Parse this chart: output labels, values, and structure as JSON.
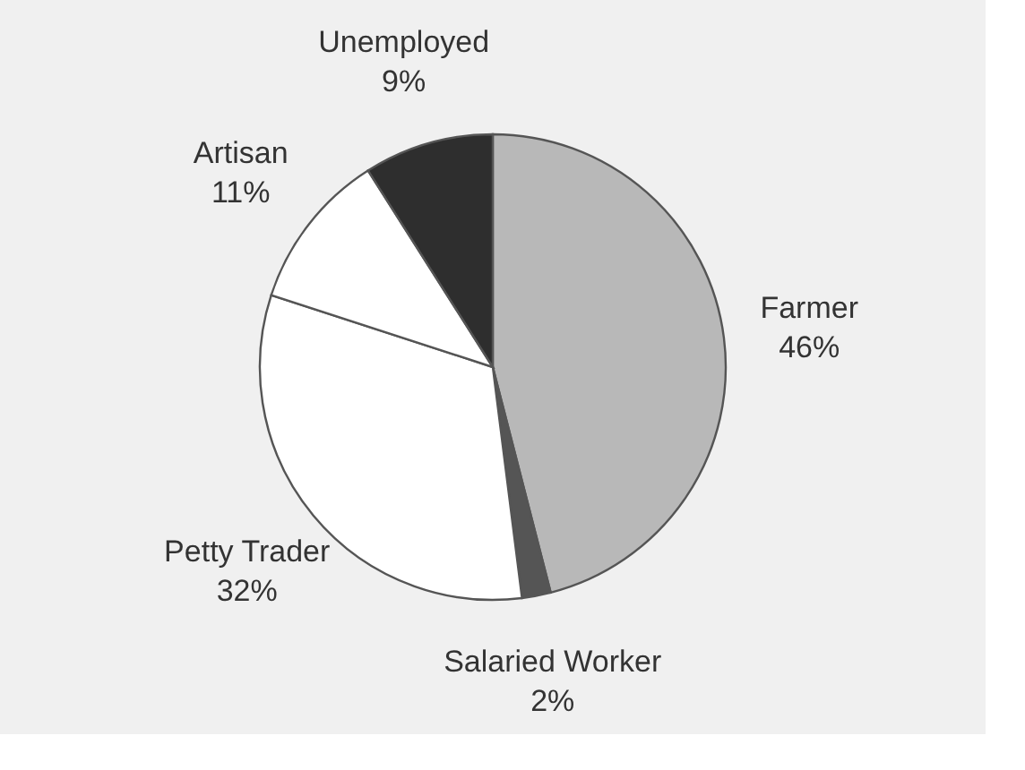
{
  "chart_data": {
    "type": "pie",
    "categories": [
      "Farmer",
      "Salaried Worker",
      "Petty Trader",
      "Artisan",
      "Unemployed"
    ],
    "values": [
      46,
      2,
      32,
      11,
      9
    ],
    "value_labels": [
      "46%",
      "2%",
      "32%",
      "11%",
      "9%"
    ],
    "colors": [
      "#b8b8b8",
      "#555555",
      "#ffffff",
      "#ffffff",
      "#2e2e2e"
    ],
    "legend": false
  }
}
